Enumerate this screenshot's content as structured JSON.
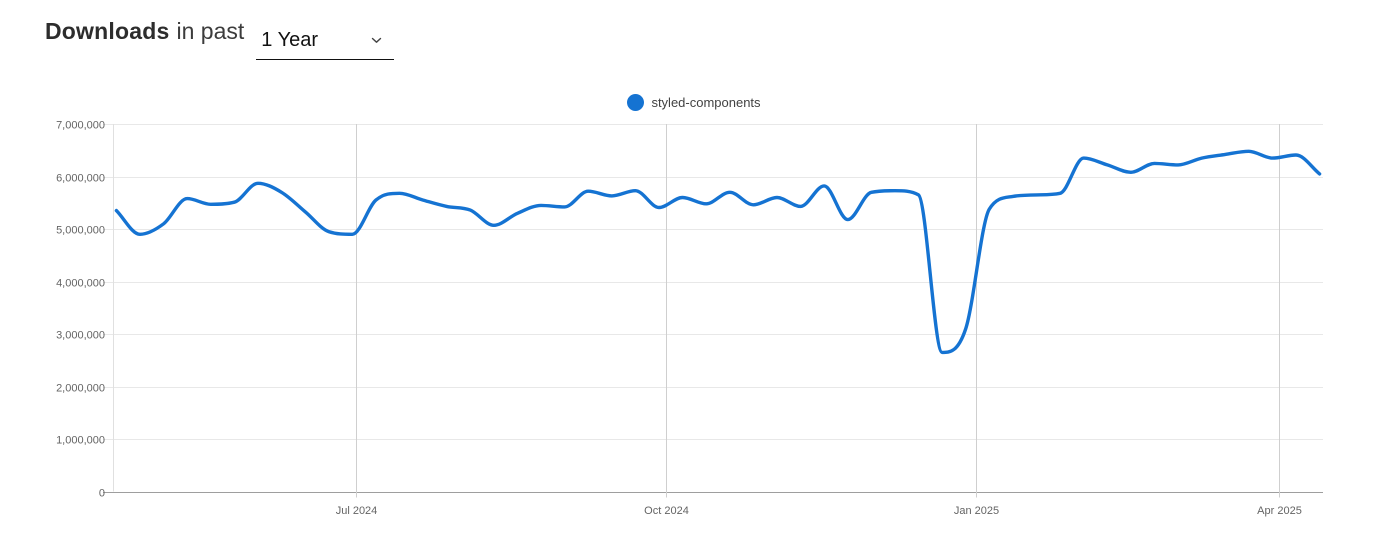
{
  "header": {
    "title_bold": "Downloads",
    "title_qualifier": "in past",
    "period_select": {
      "value": "1 Year",
      "icon": "chevron-down-icon"
    }
  },
  "legend": {
    "items": [
      {
        "label": "styled-components",
        "color": "#1573d2"
      }
    ]
  },
  "chart_data": {
    "type": "line",
    "title": "Downloads in past 1 Year",
    "legend_position": "top-center",
    "grid": true,
    "xlabel": "",
    "ylabel": "",
    "ylim": [
      0,
      7000000
    ],
    "x_domain": [
      "2024-04-20",
      "2025-04-14"
    ],
    "y_ticks": [
      {
        "value": 0,
        "label": "0"
      },
      {
        "value": 1000000,
        "label": "1,000,000"
      },
      {
        "value": 2000000,
        "label": "2,000,000"
      },
      {
        "value": 3000000,
        "label": "3,000,000"
      },
      {
        "value": 4000000,
        "label": "4,000,000"
      },
      {
        "value": 5000000,
        "label": "5,000,000"
      },
      {
        "value": 6000000,
        "label": "6,000,000"
      },
      {
        "value": 7000000,
        "label": "7,000,000"
      }
    ],
    "x_ticks": [
      {
        "date": "2024-07-01",
        "label": "Jul 2024"
      },
      {
        "date": "2024-10-01",
        "label": "Oct 2024"
      },
      {
        "date": "2025-01-01",
        "label": "Jan 2025"
      },
      {
        "date": "2025-04-01",
        "label": "Apr 2025"
      }
    ],
    "series": [
      {
        "name": "styled-components",
        "color": "#1573d2",
        "points": [
          [
            "2024-04-21",
            5350000
          ],
          [
            "2024-04-28",
            4900000
          ],
          [
            "2024-05-05",
            5100000
          ],
          [
            "2024-05-12",
            5580000
          ],
          [
            "2024-05-19",
            5470000
          ],
          [
            "2024-05-26",
            5510000
          ],
          [
            "2024-06-02",
            5870000
          ],
          [
            "2024-06-09",
            5700000
          ],
          [
            "2024-06-16",
            5330000
          ],
          [
            "2024-06-23",
            4950000
          ],
          [
            "2024-06-30",
            4900000
          ],
          [
            "2024-07-07",
            5550000
          ],
          [
            "2024-07-14",
            5680000
          ],
          [
            "2024-07-21",
            5550000
          ],
          [
            "2024-07-28",
            5430000
          ],
          [
            "2024-08-04",
            5360000
          ],
          [
            "2024-08-11",
            5070000
          ],
          [
            "2024-08-18",
            5300000
          ],
          [
            "2024-08-25",
            5450000
          ],
          [
            "2024-09-01",
            5420000
          ],
          [
            "2024-09-08",
            5720000
          ],
          [
            "2024-09-15",
            5630000
          ],
          [
            "2024-09-22",
            5730000
          ],
          [
            "2024-09-29",
            5410000
          ],
          [
            "2024-10-06",
            5600000
          ],
          [
            "2024-10-13",
            5480000
          ],
          [
            "2024-10-20",
            5700000
          ],
          [
            "2024-10-27",
            5460000
          ],
          [
            "2024-11-03",
            5600000
          ],
          [
            "2024-11-10",
            5430000
          ],
          [
            "2024-11-17",
            5820000
          ],
          [
            "2024-11-24",
            5180000
          ],
          [
            "2024-12-01",
            5700000
          ],
          [
            "2024-12-08",
            5730000
          ],
          [
            "2024-12-15",
            5650000
          ],
          [
            "2024-12-22",
            2650000
          ],
          [
            "2024-12-29",
            3100000
          ],
          [
            "2025-01-05",
            5380000
          ],
          [
            "2025-01-12",
            5620000
          ],
          [
            "2025-01-19",
            5650000
          ],
          [
            "2025-01-26",
            5680000
          ],
          [
            "2025-02-02",
            6350000
          ],
          [
            "2025-02-09",
            6220000
          ],
          [
            "2025-02-16",
            6080000
          ],
          [
            "2025-02-23",
            6250000
          ],
          [
            "2025-03-02",
            6220000
          ],
          [
            "2025-03-09",
            6350000
          ],
          [
            "2025-03-16",
            6420000
          ],
          [
            "2025-03-23",
            6480000
          ],
          [
            "2025-03-30",
            6350000
          ],
          [
            "2025-04-06",
            6410000
          ],
          [
            "2025-04-13",
            6050000
          ]
        ]
      }
    ]
  },
  "colors": {
    "accent_blue": "#1573d2",
    "grid_line": "#e8e8e8",
    "month_grid_line": "#cfcfcf",
    "zero_axis_line": "#9e9e9e",
    "y_axis_line": "#e0e0e0",
    "tick_text": "#646464",
    "title_text": "#2d2d2d",
    "legend_text": "#424242"
  }
}
